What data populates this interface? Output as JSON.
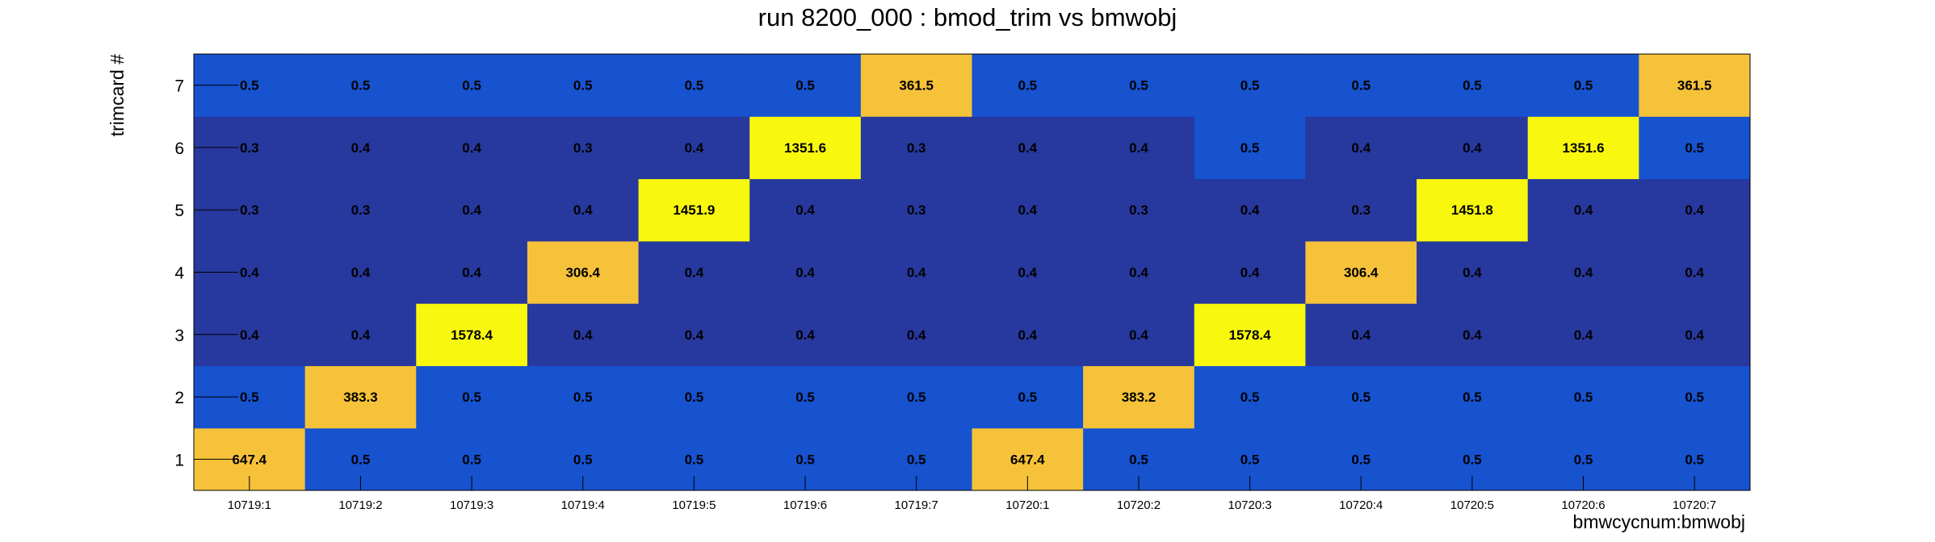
{
  "chart_data": {
    "type": "heatmap",
    "title": "run 8200_000 : bmod_trim vs bmwobj",
    "xlabel": "bmwcycnum:bmwobj",
    "ylabel": "trimcard #",
    "x_categories": [
      "10719:1",
      "10719:2",
      "10719:3",
      "10719:4",
      "10719:5",
      "10719:6",
      "10719:7",
      "10720:1",
      "10720:2",
      "10720:3",
      "10720:4",
      "10720:5",
      "10720:6",
      "10720:7"
    ],
    "y_categories": [
      "1",
      "2",
      "3",
      "4",
      "5",
      "6",
      "7"
    ],
    "values": [
      [
        "647.4",
        "0.5",
        "0.5",
        "0.5",
        "0.5",
        "0.5",
        "0.5",
        "647.4",
        "0.5",
        "0.5",
        "0.5",
        "0.5",
        "0.5",
        "0.5"
      ],
      [
        "0.5",
        "383.3",
        "0.5",
        "0.5",
        "0.5",
        "0.5",
        "0.5",
        "0.5",
        "383.2",
        "0.5",
        "0.5",
        "0.5",
        "0.5",
        "0.5"
      ],
      [
        "0.4",
        "0.4",
        "1578.4",
        "0.4",
        "0.4",
        "0.4",
        "0.4",
        "0.4",
        "0.4",
        "1578.4",
        "0.4",
        "0.4",
        "0.4",
        "0.4"
      ],
      [
        "0.4",
        "0.4",
        "0.4",
        "306.4",
        "0.4",
        "0.4",
        "0.4",
        "0.4",
        "0.4",
        "0.4",
        "306.4",
        "0.4",
        "0.4",
        "0.4"
      ],
      [
        "0.3",
        "0.3",
        "0.4",
        "0.4",
        "1451.9",
        "0.4",
        "0.3",
        "0.4",
        "0.3",
        "0.4",
        "0.3",
        "1451.8",
        "0.4",
        "0.4"
      ],
      [
        "0.3",
        "0.4",
        "0.4",
        "0.3",
        "0.4",
        "1351.6",
        "0.3",
        "0.4",
        "0.4",
        "0.5",
        "0.4",
        "0.4",
        "1351.6",
        "0.5"
      ],
      [
        "0.5",
        "0.5",
        "0.5",
        "0.5",
        "0.5",
        "0.5",
        "361.5",
        "0.5",
        "0.5",
        "0.5",
        "0.5",
        "0.5",
        "0.5",
        "361.5"
      ]
    ],
    "palette": {
      "low": "#27389e",
      "mid_low": "#1752cf",
      "mid_high": "#f5c23a",
      "high": "#f8f80e",
      "mid_threshold": 0.45,
      "high_threshold": 1000
    }
  }
}
